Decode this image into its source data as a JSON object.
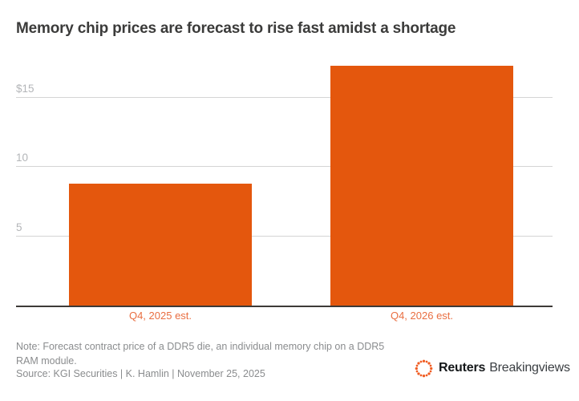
{
  "header": {
    "title": "Memory chip prices are forecast to rise fast amidst a shortage"
  },
  "chart_data": {
    "type": "bar",
    "title": "Memory chip prices are forecast to rise fast amidst a shortage",
    "categories": [
      "Q4, 2025 est.",
      "Q4, 2026 est."
    ],
    "values": [
      8.8,
      17.3
    ],
    "unit": "USD per DDR5 die",
    "xlabel": "",
    "ylabel": "",
    "ylim": [
      0,
      17.4
    ],
    "yticks": [
      {
        "value": 15,
        "label": "$15"
      },
      {
        "value": 10,
        "label": "10"
      },
      {
        "value": 5,
        "label": "5"
      }
    ],
    "grid": true,
    "legend_position": "none",
    "bar_color": "#e4570d",
    "category_label_color": "#e96e41"
  },
  "footer": {
    "note": "Note: Forecast contract price of a DDR5 die, an individual memory chip on a DDR5 RAM module.",
    "source": "Source: KGI Securities | K. Hamlin | November 25, 2025"
  },
  "brand": {
    "logo_icon": "reuters-dotted-circle-icon",
    "name": "Reuters",
    "suffix": "Breakingviews",
    "logo_color": "#f05d23"
  },
  "colors": {
    "accent": "#e4570d",
    "title_text": "#3b3b3a",
    "axis_line": "#3d3a38",
    "gridline": "#d4d4d4",
    "tick_label": "#b3b5b8",
    "muted_text": "#8a8c8e",
    "background": "#ffffff"
  }
}
